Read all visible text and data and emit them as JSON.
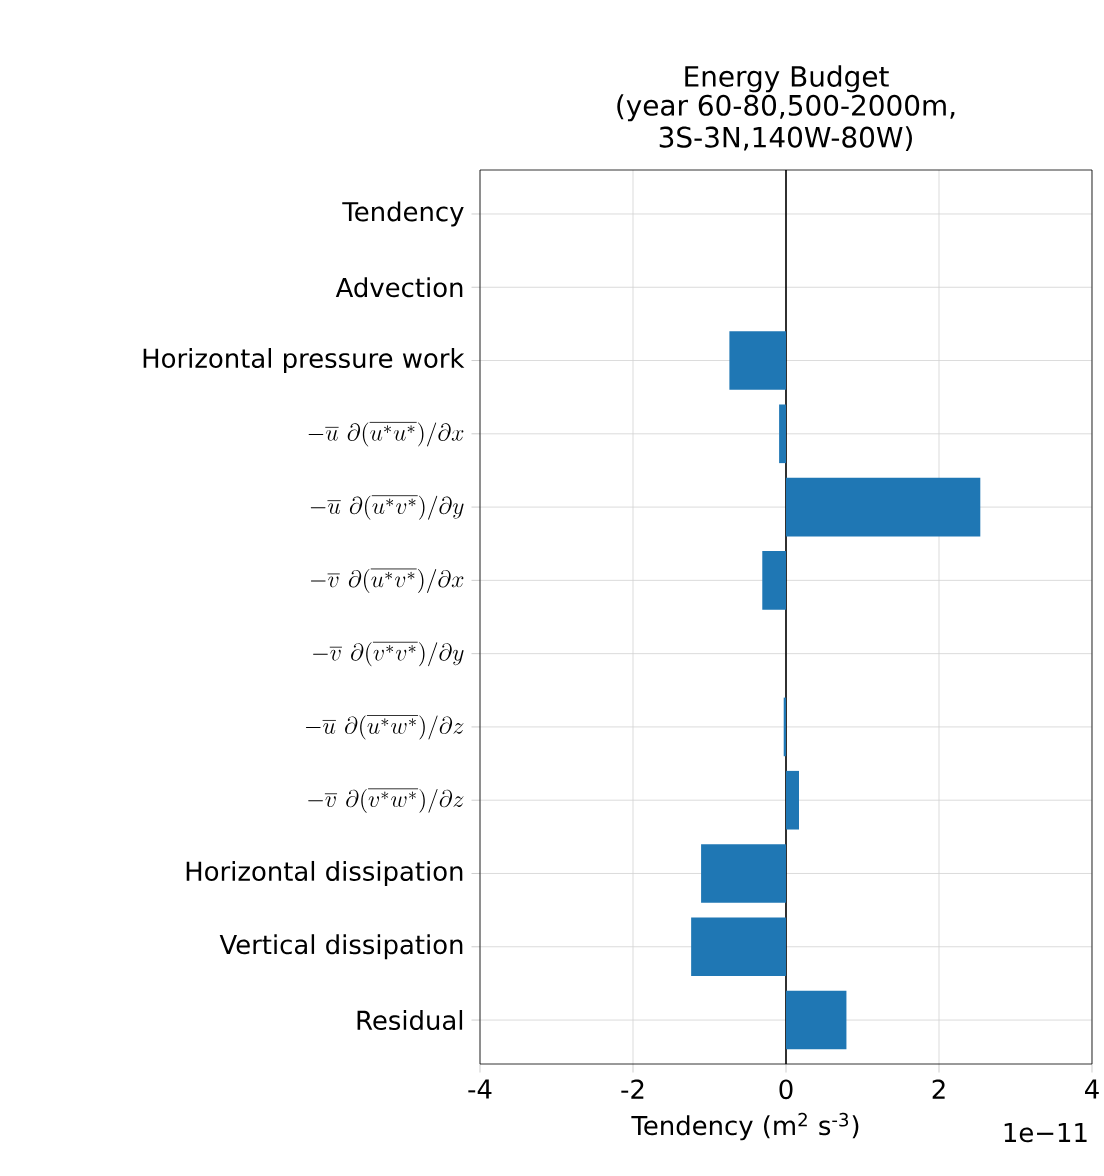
{
  "chart_data": {
    "type": "bar",
    "orientation": "horizontal",
    "title": "Energy Budget",
    "subtitle": "(year 60-80,500-2000m, 3S-3N,140W-80W)",
    "categories": [
      "Tendency",
      "Advection",
      "Horizontal pressure work",
      "-\\overline{u}\\ \\partial(\\overline{u^{*}u^{*}})/\\partial x",
      "-\\overline{u}\\ \\partial(\\overline{u^{*}v^{*}})/\\partial y",
      "-\\overline{v}\\ \\partial(\\overline{u^{*}v^{*}})/\\partial x",
      "-\\overline{v}\\ \\partial(\\overline{v^{*}v^{*}})/\\partial y",
      "-\\overline{u}\\ \\partial(\\overline{u^{*}w^{*}})/\\partial z",
      "-\\overline{v}\\ \\partial(\\overline{v^{*}w^{*}})/\\partial z",
      "Horizontal dissipation",
      "Vertical dissipation",
      "Residual"
    ],
    "values": [
      0,
      0,
      -0.74,
      -0.09,
      2.54,
      -0.31,
      0,
      -0.03,
      0.17,
      -1.11,
      -1.24,
      0.79
    ],
    "color": "#1f77b4",
    "xlim": [
      -4,
      4
    ],
    "xticks": [
      -4,
      -2,
      0,
      2,
      4
    ],
    "xlabel": "Tendency (m$^{2}$ s$^{-3}$)",
    "annotations": [
      "1e−11"
    ],
    "ref_lines": [
      {
        "axis": "x",
        "value": 0,
        "color": "#000000"
      }
    ],
    "grid": true
  }
}
